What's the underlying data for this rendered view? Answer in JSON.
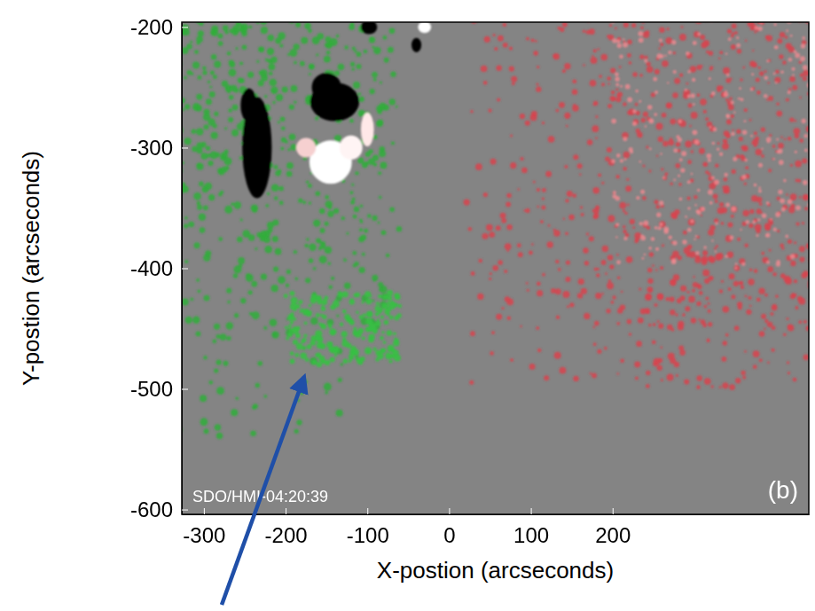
{
  "chart_data": {
    "type": "image",
    "xlabel": "X-postion (arcseconds)",
    "ylabel": "Y-postion (arcseconds)",
    "xlim": [
      -327,
      440
    ],
    "ylim": [
      -604,
      -196
    ],
    "xticks": [
      -300,
      -200,
      -100,
      0,
      100,
      200
    ],
    "yticks": [
      -200,
      -300,
      -400,
      -500,
      -600
    ],
    "annotations": [
      "SDO/HMI-04:20:39",
      "(b)"
    ]
  }
}
